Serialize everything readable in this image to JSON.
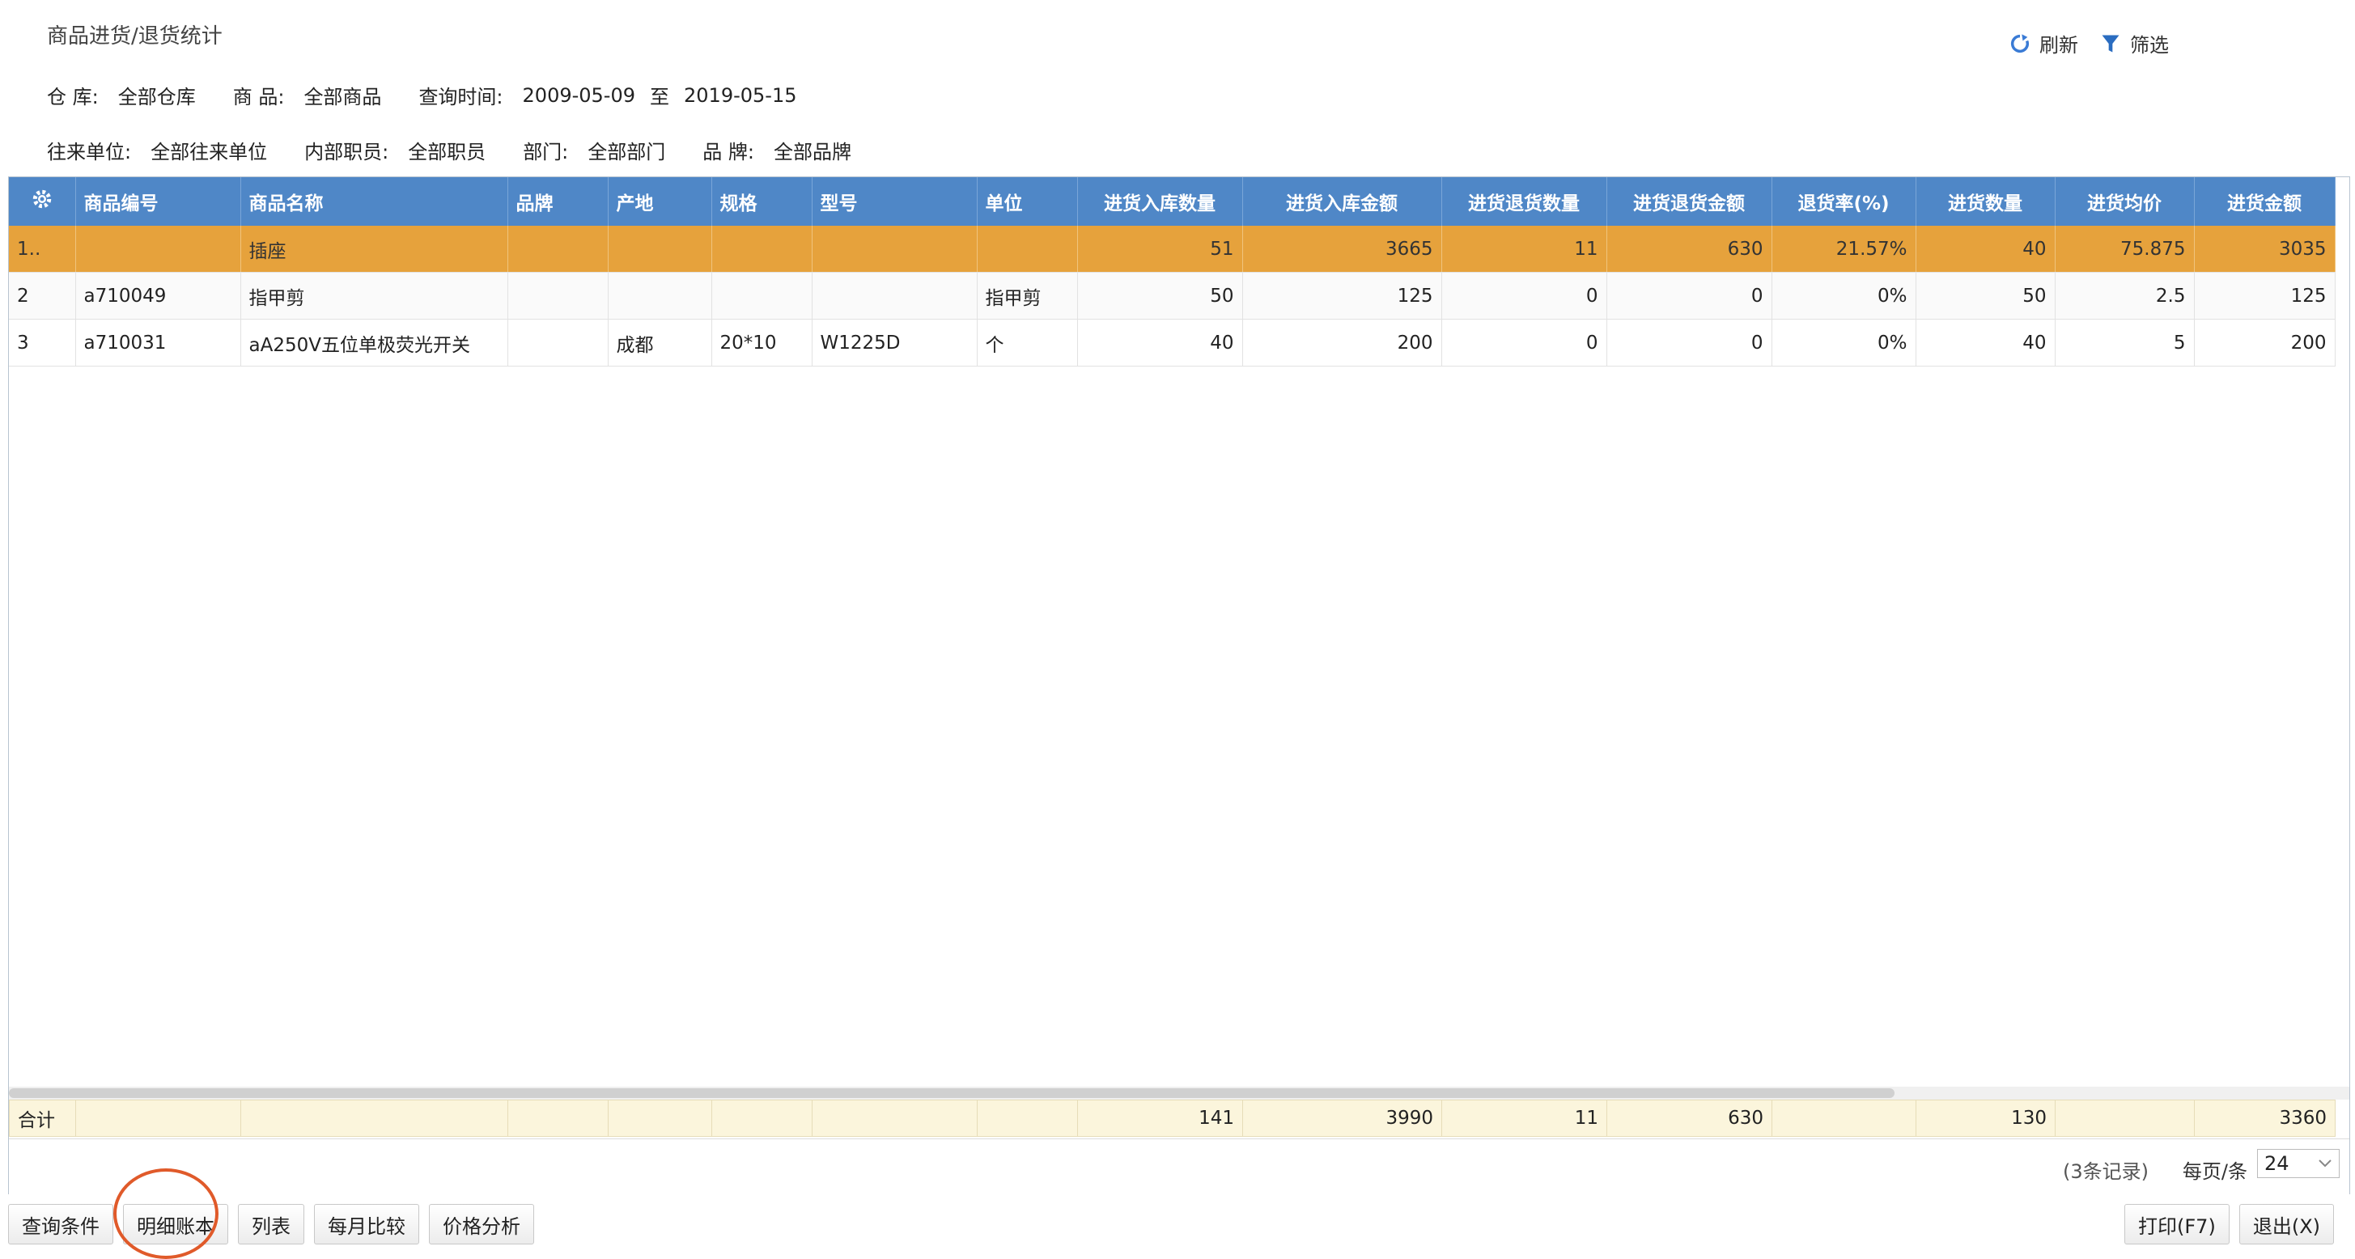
{
  "title": "商品进货/退货统计",
  "actions": {
    "refresh": "刷新",
    "filter": "筛选"
  },
  "filters": {
    "warehouse_label": "仓 库:",
    "warehouse": "全部仓库",
    "goods_label": "商 品:",
    "goods": "全部商品",
    "time_label": "查询时间:",
    "date_from": "2009-05-09",
    "date_to_sep": "至",
    "date_to": "2019-05-15",
    "partner_label": "往来单位:",
    "partner": "全部往来单位",
    "staff_label": "内部职员:",
    "staff": "全部职员",
    "dept_label": "部门:",
    "dept": "全部部门",
    "brand_label": "品 牌:",
    "brand": "全部品牌"
  },
  "columns": [
    "商品编号",
    "商品名称",
    "品牌",
    "产地",
    "规格",
    "型号",
    "单位",
    "进货入库数量",
    "进货入库金额",
    "进货退货数量",
    "进货退货金额",
    "退货率(%)",
    "进货数量",
    "进货均价",
    "进货金额"
  ],
  "rows": [
    [
      "1..",
      "",
      "插座",
      "",
      "",
      "",
      "",
      "",
      "51",
      "3665",
      "11",
      "630",
      "21.57%",
      "40",
      "75.875",
      "3035"
    ],
    [
      "2",
      "a710049",
      "指甲剪",
      "",
      "",
      "",
      "",
      "指甲剪",
      "50",
      "125",
      "0",
      "0",
      "0%",
      "50",
      "2.5",
      "125"
    ],
    [
      "3",
      "a710031",
      "aA250V五位单极荧光开关",
      "",
      "成都",
      "20*10",
      "W1225D",
      "个",
      "40",
      "200",
      "0",
      "0",
      "0%",
      "40",
      "5",
      "200"
    ]
  ],
  "totals": {
    "label": "合计",
    "in_qty": "141",
    "in_amt": "3990",
    "ret_qty": "11",
    "ret_amt": "630",
    "buy_qty": "130",
    "buy_amt": "3360"
  },
  "pager": {
    "records": "(3条记录)",
    "per_page_label": "每页/条",
    "per_page": "24"
  },
  "buttons_left": [
    "查询条件",
    "明细账本",
    "列表",
    "每月比较",
    "价格分析"
  ],
  "buttons_right": [
    "打印(F7)",
    "退出(X)"
  ],
  "colors": {
    "header": "#4f87c7",
    "selected_row": "#e6a23c",
    "totals": "#fbf5dc",
    "annotation": "#e05a2a"
  }
}
